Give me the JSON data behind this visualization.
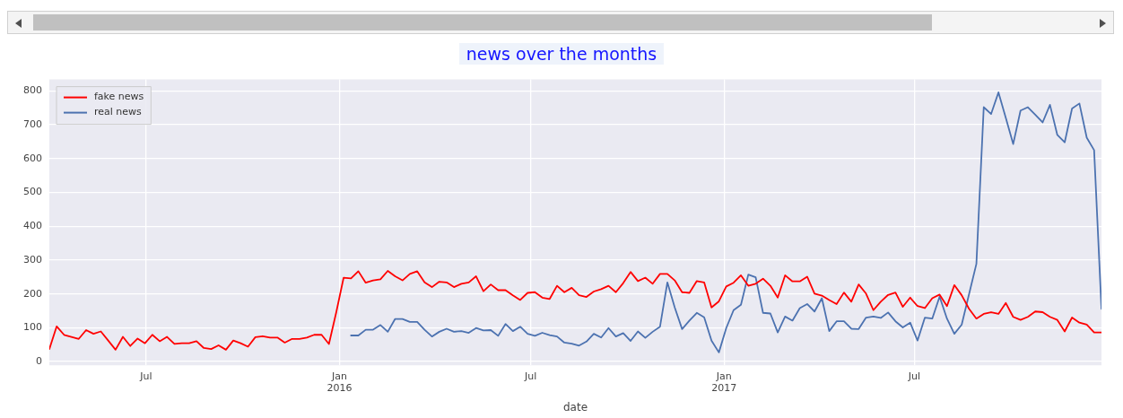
{
  "chart_data": {
    "type": "line",
    "title": "news over the months",
    "xlabel": "date",
    "x": [
      "2015-03-31",
      "2015-04-07",
      "2015-04-14",
      "2015-04-21",
      "2015-04-28",
      "2015-05-05",
      "2015-05-12",
      "2015-05-19",
      "2015-05-26",
      "2015-06-02",
      "2015-06-09",
      "2015-06-16",
      "2015-06-23",
      "2015-06-30",
      "2015-07-07",
      "2015-07-14",
      "2015-07-21",
      "2015-07-28",
      "2015-08-04",
      "2015-08-11",
      "2015-08-18",
      "2015-08-25",
      "2015-09-01",
      "2015-09-08",
      "2015-09-15",
      "2015-09-22",
      "2015-09-29",
      "2015-10-06",
      "2015-10-13",
      "2015-10-20",
      "2015-10-27",
      "2015-11-03",
      "2015-11-10",
      "2015-11-17",
      "2015-11-24",
      "2015-12-01",
      "2015-12-08",
      "2015-12-15",
      "2015-12-22",
      "2015-12-29",
      "2016-01-05",
      "2016-01-12",
      "2016-01-19",
      "2016-01-26",
      "2016-02-02",
      "2016-02-09",
      "2016-02-16",
      "2016-02-23",
      "2016-03-01",
      "2016-03-08",
      "2016-03-15",
      "2016-03-22",
      "2016-03-29",
      "2016-04-05",
      "2016-04-12",
      "2016-04-19",
      "2016-04-26",
      "2016-05-03",
      "2016-05-10",
      "2016-05-17",
      "2016-05-24",
      "2016-05-31",
      "2016-06-07",
      "2016-06-14",
      "2016-06-21",
      "2016-06-28",
      "2016-07-05",
      "2016-07-12",
      "2016-07-19",
      "2016-07-26",
      "2016-08-02",
      "2016-08-09",
      "2016-08-16",
      "2016-08-23",
      "2016-08-30",
      "2016-09-06",
      "2016-09-13",
      "2016-09-20",
      "2016-09-27",
      "2016-10-04",
      "2016-10-11",
      "2016-10-18",
      "2016-10-25",
      "2016-11-01",
      "2016-11-08",
      "2016-11-15",
      "2016-11-22",
      "2016-11-29",
      "2016-12-06",
      "2016-12-13",
      "2016-12-20",
      "2016-12-27",
      "2017-01-03",
      "2017-01-10",
      "2017-01-17",
      "2017-01-24",
      "2017-01-31",
      "2017-02-07",
      "2017-02-14",
      "2017-02-21",
      "2017-02-28",
      "2017-03-07",
      "2017-03-14",
      "2017-03-21",
      "2017-03-28",
      "2017-04-04",
      "2017-04-11",
      "2017-04-18",
      "2017-04-25",
      "2017-05-02",
      "2017-05-09",
      "2017-05-16",
      "2017-05-23",
      "2017-05-30",
      "2017-06-06",
      "2017-06-13",
      "2017-06-20",
      "2017-06-27",
      "2017-07-04",
      "2017-07-11",
      "2017-07-18",
      "2017-07-25",
      "2017-08-01",
      "2017-08-08",
      "2017-08-15",
      "2017-08-22",
      "2017-08-29",
      "2017-09-05",
      "2017-09-12",
      "2017-09-19",
      "2017-09-26",
      "2017-10-03",
      "2017-10-10",
      "2017-10-17",
      "2017-10-24",
      "2017-10-31",
      "2017-11-07",
      "2017-11-14",
      "2017-11-21",
      "2017-11-28",
      "2017-12-05",
      "2017-12-12",
      "2017-12-19",
      "2017-12-26"
    ],
    "series": [
      {
        "name": "fake news",
        "color": "#ff0000",
        "values": [
          37,
          104,
          79,
          73,
          67,
          93,
          82,
          89,
          62,
          35,
          73,
          46,
          68,
          54,
          79,
          60,
          73,
          52,
          54,
          54,
          60,
          40,
          37,
          48,
          35,
          62,
          54,
          44,
          72,
          75,
          71,
          71,
          56,
          67,
          67,
          71,
          79,
          79,
          52,
          146,
          248,
          246,
          267,
          233,
          240,
          243,
          268,
          252,
          240,
          259,
          267,
          234,
          220,
          236,
          234,
          220,
          230,
          234,
          252,
          208,
          228,
          211,
          211,
          196,
          182,
          203,
          205,
          189,
          185,
          224,
          205,
          218,
          196,
          191,
          207,
          214,
          224,
          205,
          232,
          265,
          238,
          248,
          230,
          259,
          259,
          240,
          205,
          203,
          238,
          234,
          160,
          178,
          222,
          233,
          255,
          224,
          230,
          245,
          224,
          189,
          255,
          237,
          237,
          251,
          201,
          195,
          182,
          170,
          204,
          177,
          228,
          201,
          152,
          177,
          197,
          204,
          162,
          189,
          164,
          158,
          187,
          198,
          164,
          226,
          196,
          156,
          127,
          141,
          146,
          141,
          173,
          132,
          123,
          132,
          148,
          146,
          132,
          123,
          89,
          130,
          115,
          109,
          86,
          86
        ]
      },
      {
        "name": "real news",
        "color": "#4c72b0",
        "values": [
          null,
          null,
          null,
          null,
          null,
          null,
          null,
          null,
          null,
          null,
          null,
          null,
          null,
          null,
          null,
          null,
          null,
          null,
          null,
          null,
          null,
          null,
          null,
          null,
          null,
          null,
          null,
          null,
          null,
          null,
          null,
          null,
          null,
          null,
          null,
          null,
          null,
          null,
          null,
          null,
          null,
          77,
          77,
          94,
          94,
          108,
          88,
          126,
          126,
          117,
          117,
          94,
          74,
          88,
          97,
          88,
          90,
          85,
          99,
          92,
          93,
          76,
          111,
          90,
          103,
          82,
          76,
          85,
          78,
          74,
          56,
          53,
          47,
          59,
          82,
          71,
          99,
          74,
          84,
          61,
          89,
          70,
          88,
          103,
          234,
          160,
          96,
          121,
          144,
          131,
          62,
          27,
          99,
          152,
          168,
          257,
          249,
          144,
          142,
          86,
          133,
          121,
          158,
          170,
          148,
          187,
          90,
          119,
          119,
          97,
          96,
          130,
          133,
          129,
          145,
          119,
          101,
          115,
          62,
          130,
          127,
          192,
          127,
          82,
          109,
          199,
          289,
          752,
          732,
          796,
          720,
          643,
          742,
          752,
          730,
          707,
          759,
          670,
          648,
          748,
          763,
          662,
          625,
          156
        ]
      }
    ],
    "xlim": [
      "2015-03-31",
      "2017-12-26"
    ],
    "xticks": [
      {
        "value": "2015-07-01",
        "label": "Jul"
      },
      {
        "value": "2016-01-01",
        "label": "Jan\n2016"
      },
      {
        "value": "2016-07-01",
        "label": "Jul"
      },
      {
        "value": "2017-01-01",
        "label": "Jan\n2017"
      },
      {
        "value": "2017-07-01",
        "label": "Jul"
      }
    ],
    "ylim": [
      -11,
      834
    ],
    "yticks": [
      0,
      100,
      200,
      300,
      400,
      500,
      600,
      700,
      800
    ],
    "grid": true,
    "legend": "top left"
  }
}
